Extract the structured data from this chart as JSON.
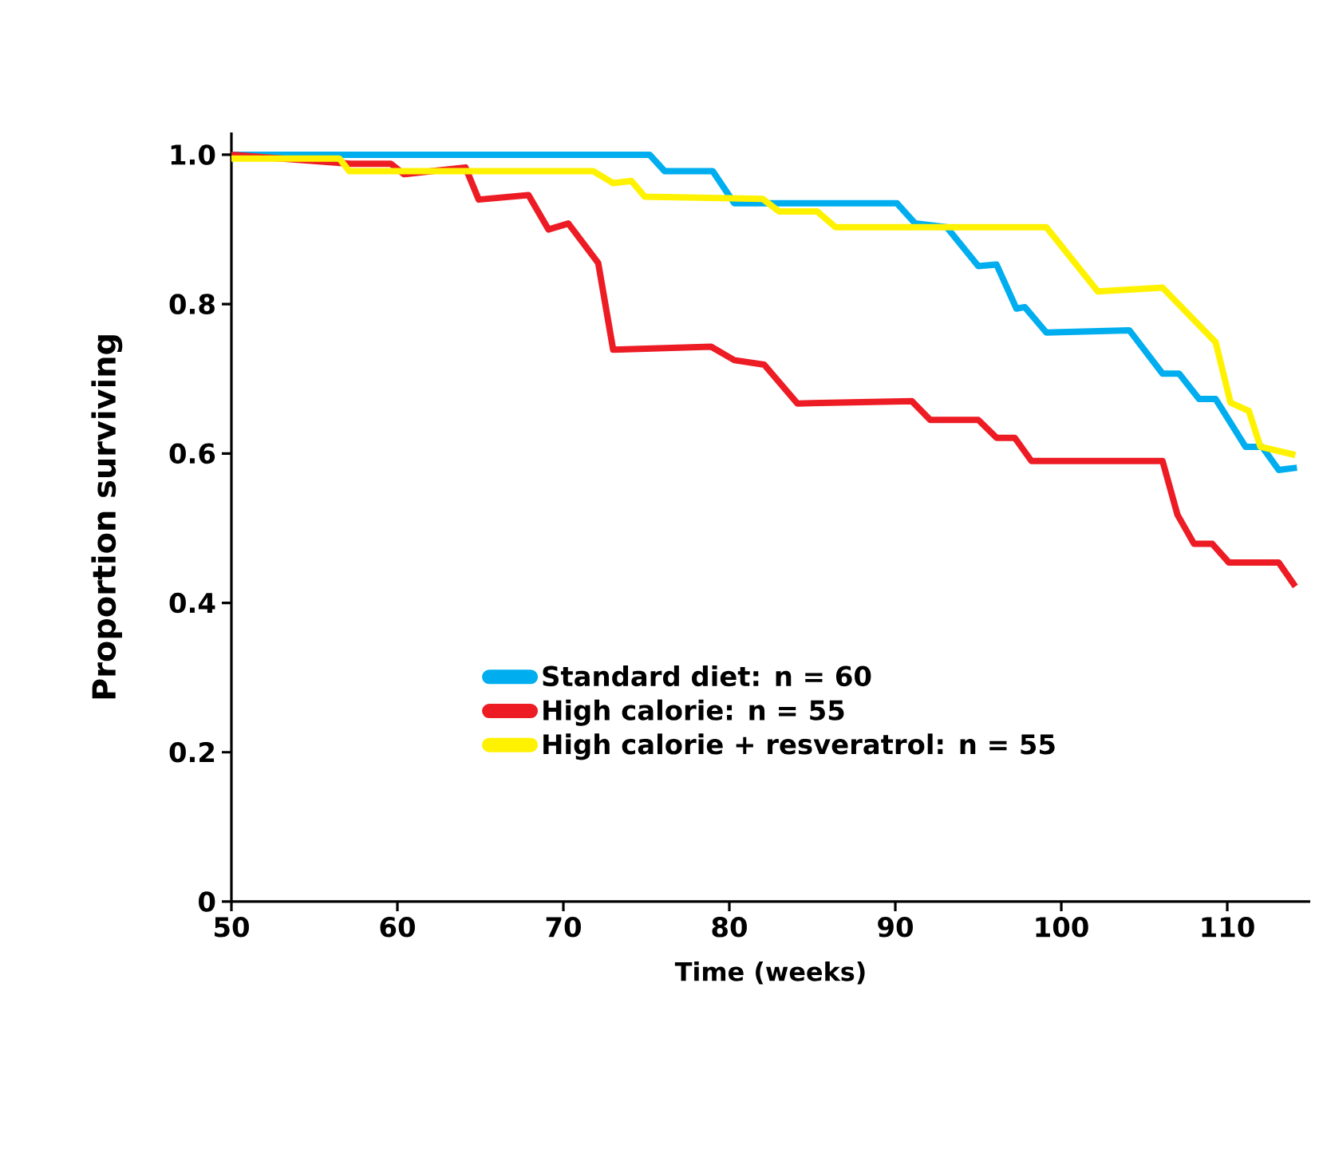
{
  "chart_data": {
    "type": "line",
    "xlabel": "Time (weeks)",
    "ylabel": "Proportion surviving",
    "xlim": [
      50,
      115
    ],
    "ylim": [
      0,
      1.03
    ],
    "xticks": [
      50,
      60,
      70,
      80,
      90,
      100,
      110
    ],
    "yticks": [
      0,
      0.2,
      0.4,
      0.6,
      0.8,
      {
        "value": 1,
        "label": "1.0"
      }
    ],
    "legend": "bottom",
    "grid": false,
    "marker": "none",
    "line_style": "solid",
    "series": [
      {
        "name": "Standard diet: n = 60",
        "color": "#00aeef",
        "x": [
          50,
          75.2,
          76.1,
          79.0,
          80.3,
          90.1,
          91.2,
          93.1,
          95.0,
          96.1,
          97.3,
          97.8,
          99.1,
          104.1,
          106.1,
          107.1,
          108.3,
          109.3,
          111.1,
          112.1,
          113.1,
          114.2
        ],
        "values": [
          1.0,
          1.0,
          0.978,
          0.978,
          0.935,
          0.935,
          0.908,
          0.903,
          0.851,
          0.853,
          0.794,
          0.796,
          0.762,
          0.765,
          0.707,
          0.707,
          0.673,
          0.673,
          0.609,
          0.609,
          0.578,
          0.581
        ]
      },
      {
        "name": "High calorie: n = 55",
        "color": "#ed1c24",
        "x": [
          50,
          57.2,
          59.6,
          60.4,
          64.1,
          64.9,
          67.9,
          69.1,
          70.3,
          72.1,
          73.0,
          78.9,
          80.3,
          82.1,
          84.1,
          91.0,
          92.1,
          95.0,
          96.1,
          97.2,
          98.2,
          106.1,
          107.0,
          108.0,
          109.1,
          110.1,
          113.1,
          114.1
        ],
        "values": [
          1.0,
          0.988,
          0.988,
          0.974,
          0.983,
          0.94,
          0.946,
          0.9,
          0.908,
          0.855,
          0.739,
          0.743,
          0.725,
          0.719,
          0.667,
          0.67,
          0.645,
          0.645,
          0.621,
          0.621,
          0.59,
          0.59,
          0.518,
          0.479,
          0.479,
          0.454,
          0.454,
          0.422
        ]
      },
      {
        "name": "High calorie + resveratrol: n = 55",
        "color": "#fff200",
        "x": [
          50,
          56.5,
          57.1,
          71.8,
          73.0,
          74.1,
          74.9,
          82.0,
          83.0,
          85.3,
          86.4,
          99.1,
          102.2,
          106.1,
          109.3,
          110.2,
          111.3,
          112.0,
          114.1
        ],
        "values": [
          0.995,
          0.995,
          0.978,
          0.978,
          0.962,
          0.965,
          0.944,
          0.941,
          0.924,
          0.924,
          0.903,
          0.903,
          0.817,
          0.822,
          0.749,
          0.668,
          0.657,
          0.609,
          0.598
        ]
      }
    ]
  }
}
